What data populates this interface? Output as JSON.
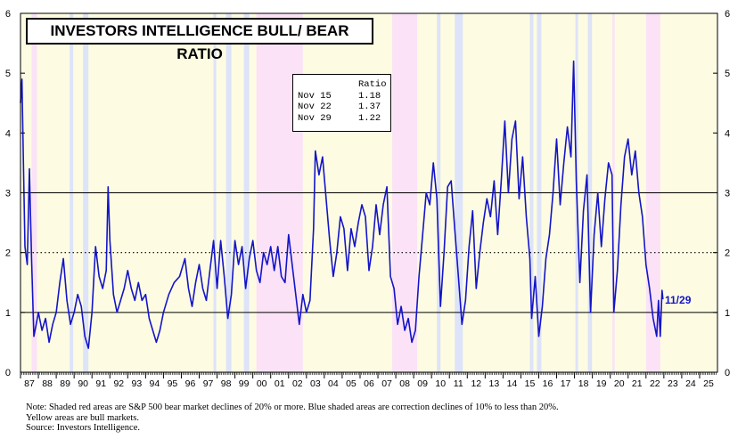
{
  "chart_data": {
    "type": "line",
    "title": "INVESTORS INTELLIGENCE BULL/ BEAR RATIO",
    "ylim": [
      0,
      6
    ],
    "yticks": [
      "0",
      "1",
      "2",
      "3",
      "4",
      "5",
      "6"
    ],
    "x_range": [
      1987.0,
      2026.0
    ],
    "x_tick_labels": [
      "87",
      "88",
      "89",
      "90",
      "91",
      "92",
      "93",
      "94",
      "95",
      "96",
      "97",
      "98",
      "99",
      "00",
      "01",
      "02",
      "03",
      "04",
      "05",
      "06",
      "07",
      "08",
      "09",
      "10",
      "11",
      "12",
      "13",
      "14",
      "15",
      "16",
      "17",
      "18",
      "19",
      "20",
      "21",
      "22",
      "23",
      "24",
      "25"
    ],
    "reference_lines": [
      {
        "y": 1,
        "style": "solid"
      },
      {
        "y": 2,
        "style": "dotted"
      },
      {
        "y": 3,
        "style": "solid"
      }
    ],
    "legend_table": {
      "header": "Ratio",
      "rows": [
        {
          "date": "Nov 15",
          "value": "1.18"
        },
        {
          "date": "Nov 22",
          "value": "1.37"
        },
        {
          "date": "Nov 29",
          "value": "1.22"
        }
      ]
    },
    "last_label": "11/29",
    "shading": {
      "bull_color": "#fdfce2",
      "bear_color": "#fbe2f7",
      "correction_color": "#dde3f8",
      "bear": [
        [
          1987.62,
          1987.92
        ],
        [
          2000.2,
          2002.8
        ],
        [
          2007.8,
          2009.2
        ],
        [
          2020.12,
          2020.25
        ],
        [
          2022.0,
          2022.8
        ]
      ],
      "correction": [
        [
          1989.75,
          1989.95
        ],
        [
          1990.5,
          1990.8
        ],
        [
          1997.8,
          1997.95
        ],
        [
          1998.5,
          1998.8
        ],
        [
          1999.5,
          1999.8
        ],
        [
          2010.3,
          2010.5
        ],
        [
          2011.3,
          2011.75
        ],
        [
          2015.5,
          2015.7
        ],
        [
          2015.9,
          2016.15
        ],
        [
          2018.05,
          2018.2
        ],
        [
          2018.75,
          2018.98
        ]
      ]
    },
    "series": [
      {
        "name": "Bull/Bear Ratio",
        "color": "#1414c8",
        "points": [
          [
            1987.0,
            4.5
          ],
          [
            1987.08,
            4.9
          ],
          [
            1987.17,
            3.4
          ],
          [
            1987.25,
            2.1
          ],
          [
            1987.38,
            1.8
          ],
          [
            1987.5,
            3.4
          ],
          [
            1987.62,
            1.9
          ],
          [
            1987.75,
            0.6
          ],
          [
            1987.88,
            0.8
          ],
          [
            1988.0,
            1.0
          ],
          [
            1988.2,
            0.7
          ],
          [
            1988.4,
            0.9
          ],
          [
            1988.6,
            0.5
          ],
          [
            1988.8,
            0.8
          ],
          [
            1989.0,
            1.0
          ],
          [
            1989.2,
            1.5
          ],
          [
            1989.4,
            1.9
          ],
          [
            1989.6,
            1.2
          ],
          [
            1989.8,
            0.8
          ],
          [
            1990.0,
            1.0
          ],
          [
            1990.2,
            1.3
          ],
          [
            1990.4,
            1.1
          ],
          [
            1990.6,
            0.6
          ],
          [
            1990.8,
            0.4
          ],
          [
            1991.0,
            1.0
          ],
          [
            1991.2,
            2.1
          ],
          [
            1991.4,
            1.6
          ],
          [
            1991.6,
            1.4
          ],
          [
            1991.8,
            1.7
          ],
          [
            1991.9,
            3.1
          ],
          [
            1992.0,
            2.2
          ],
          [
            1992.2,
            1.3
          ],
          [
            1992.4,
            1.0
          ],
          [
            1992.6,
            1.2
          ],
          [
            1992.8,
            1.4
          ],
          [
            1993.0,
            1.7
          ],
          [
            1993.2,
            1.4
          ],
          [
            1993.4,
            1.2
          ],
          [
            1993.6,
            1.5
          ],
          [
            1993.8,
            1.2
          ],
          [
            1994.0,
            1.3
          ],
          [
            1994.2,
            0.9
          ],
          [
            1994.4,
            0.7
          ],
          [
            1994.6,
            0.5
          ],
          [
            1994.8,
            0.7
          ],
          [
            1995.0,
            1.0
          ],
          [
            1995.3,
            1.3
          ],
          [
            1995.6,
            1.5
          ],
          [
            1995.9,
            1.6
          ],
          [
            1996.2,
            1.9
          ],
          [
            1996.4,
            1.4
          ],
          [
            1996.6,
            1.1
          ],
          [
            1996.8,
            1.5
          ],
          [
            1997.0,
            1.8
          ],
          [
            1997.2,
            1.4
          ],
          [
            1997.4,
            1.2
          ],
          [
            1997.6,
            1.7
          ],
          [
            1997.8,
            2.2
          ],
          [
            1998.0,
            1.4
          ],
          [
            1998.2,
            2.2
          ],
          [
            1998.4,
            1.6
          ],
          [
            1998.6,
            0.9
          ],
          [
            1998.8,
            1.3
          ],
          [
            1999.0,
            2.2
          ],
          [
            1999.2,
            1.8
          ],
          [
            1999.4,
            2.1
          ],
          [
            1999.6,
            1.4
          ],
          [
            1999.8,
            1.9
          ],
          [
            2000.0,
            2.2
          ],
          [
            2000.2,
            1.7
          ],
          [
            2000.4,
            1.5
          ],
          [
            2000.6,
            2.0
          ],
          [
            2000.8,
            1.8
          ],
          [
            2001.0,
            2.1
          ],
          [
            2001.2,
            1.7
          ],
          [
            2001.4,
            2.1
          ],
          [
            2001.6,
            1.6
          ],
          [
            2001.8,
            1.5
          ],
          [
            2002.0,
            2.3
          ],
          [
            2002.2,
            1.8
          ],
          [
            2002.4,
            1.3
          ],
          [
            2002.6,
            0.8
          ],
          [
            2002.8,
            1.3
          ],
          [
            2003.0,
            1.0
          ],
          [
            2003.2,
            1.2
          ],
          [
            2003.4,
            2.4
          ],
          [
            2003.5,
            3.7
          ],
          [
            2003.7,
            3.3
          ],
          [
            2003.9,
            3.6
          ],
          [
            2004.1,
            2.9
          ],
          [
            2004.3,
            2.2
          ],
          [
            2004.5,
            1.6
          ],
          [
            2004.7,
            2.0
          ],
          [
            2004.9,
            2.6
          ],
          [
            2005.1,
            2.4
          ],
          [
            2005.3,
            1.7
          ],
          [
            2005.5,
            2.4
          ],
          [
            2005.7,
            2.1
          ],
          [
            2005.9,
            2.5
          ],
          [
            2006.1,
            2.8
          ],
          [
            2006.3,
            2.6
          ],
          [
            2006.5,
            1.7
          ],
          [
            2006.7,
            2.1
          ],
          [
            2006.9,
            2.8
          ],
          [
            2007.1,
            2.3
          ],
          [
            2007.3,
            2.8
          ],
          [
            2007.5,
            3.1
          ],
          [
            2007.7,
            1.6
          ],
          [
            2007.9,
            1.4
          ],
          [
            2008.1,
            0.8
          ],
          [
            2008.3,
            1.1
          ],
          [
            2008.5,
            0.7
          ],
          [
            2008.7,
            0.9
          ],
          [
            2008.9,
            0.5
          ],
          [
            2009.1,
            0.7
          ],
          [
            2009.3,
            1.6
          ],
          [
            2009.5,
            2.3
          ],
          [
            2009.7,
            3.0
          ],
          [
            2009.9,
            2.8
          ],
          [
            2010.1,
            3.5
          ],
          [
            2010.3,
            2.9
          ],
          [
            2010.5,
            1.1
          ],
          [
            2010.7,
            2.0
          ],
          [
            2010.9,
            3.1
          ],
          [
            2011.1,
            3.2
          ],
          [
            2011.3,
            2.4
          ],
          [
            2011.5,
            1.6
          ],
          [
            2011.7,
            0.8
          ],
          [
            2011.9,
            1.2
          ],
          [
            2012.1,
            2.1
          ],
          [
            2012.3,
            2.7
          ],
          [
            2012.5,
            1.4
          ],
          [
            2012.7,
            2.0
          ],
          [
            2012.9,
            2.5
          ],
          [
            2013.1,
            2.9
          ],
          [
            2013.3,
            2.6
          ],
          [
            2013.5,
            3.2
          ],
          [
            2013.7,
            2.3
          ],
          [
            2013.9,
            3.2
          ],
          [
            2014.1,
            4.2
          ],
          [
            2014.3,
            3.0
          ],
          [
            2014.5,
            3.9
          ],
          [
            2014.7,
            4.2
          ],
          [
            2014.9,
            2.9
          ],
          [
            2015.1,
            3.6
          ],
          [
            2015.3,
            2.6
          ],
          [
            2015.5,
            1.9
          ],
          [
            2015.6,
            0.9
          ],
          [
            2015.8,
            1.6
          ],
          [
            2016.0,
            0.6
          ],
          [
            2016.2,
            1.1
          ],
          [
            2016.4,
            1.9
          ],
          [
            2016.6,
            2.3
          ],
          [
            2016.8,
            3.0
          ],
          [
            2017.0,
            3.9
          ],
          [
            2017.2,
            2.8
          ],
          [
            2017.4,
            3.5
          ],
          [
            2017.6,
            4.1
          ],
          [
            2017.8,
            3.6
          ],
          [
            2017.95,
            5.2
          ],
          [
            2018.1,
            3.2
          ],
          [
            2018.3,
            1.5
          ],
          [
            2018.5,
            2.7
          ],
          [
            2018.7,
            3.3
          ],
          [
            2018.9,
            1.0
          ],
          [
            2019.1,
            2.3
          ],
          [
            2019.3,
            3.0
          ],
          [
            2019.5,
            2.1
          ],
          [
            2019.7,
            2.9
          ],
          [
            2019.9,
            3.5
          ],
          [
            2020.1,
            3.3
          ],
          [
            2020.2,
            1.0
          ],
          [
            2020.4,
            1.7
          ],
          [
            2020.6,
            2.8
          ],
          [
            2020.8,
            3.6
          ],
          [
            2021.0,
            3.9
          ],
          [
            2021.2,
            3.3
          ],
          [
            2021.4,
            3.7
          ],
          [
            2021.6,
            3.0
          ],
          [
            2021.8,
            2.6
          ],
          [
            2022.0,
            1.8
          ],
          [
            2022.2,
            1.4
          ],
          [
            2022.4,
            0.9
          ],
          [
            2022.6,
            0.6
          ],
          [
            2022.7,
            1.2
          ],
          [
            2022.8,
            0.6
          ],
          [
            2022.9,
            1.37
          ],
          [
            2022.95,
            1.22
          ]
        ]
      }
    ]
  },
  "note_lines": [
    "Note: Shaded red areas are S&P 500 bear market declines of 20% or more.  Blue shaded areas are correction declines of 10% to less than 20%.",
    "Yellow areas are bull markets.",
    "Source: Investors Intelligence."
  ]
}
